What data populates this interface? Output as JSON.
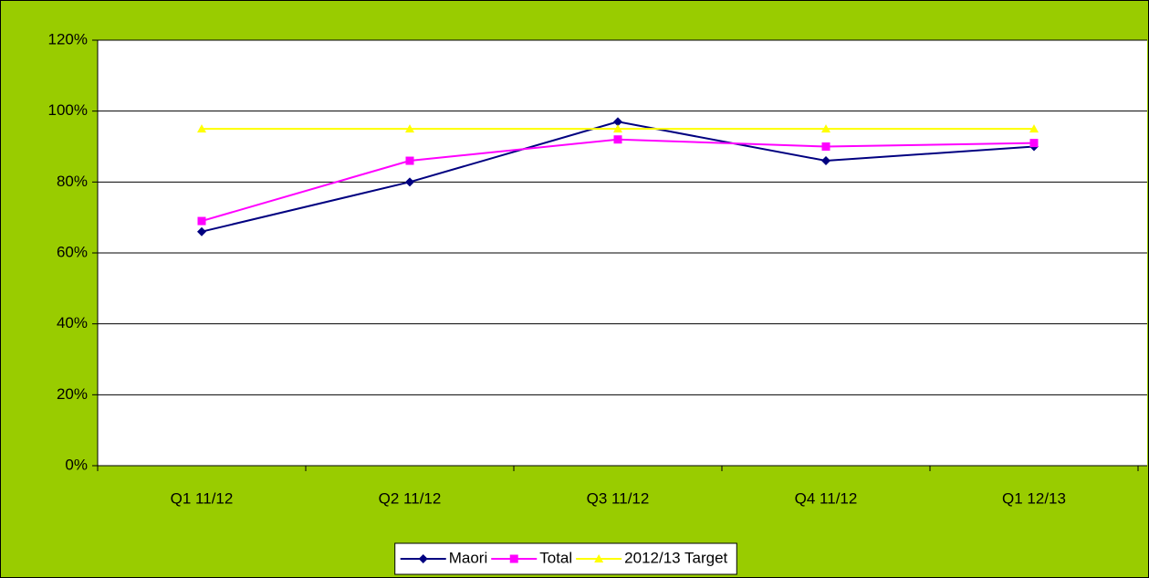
{
  "chart_data": {
    "type": "line",
    "categories": [
      "Q1 11/12",
      "Q2 11/12",
      "Q3 11/12",
      "Q4 11/12",
      "Q1 12/13"
    ],
    "series": [
      {
        "name": "Maori",
        "color": "#000080",
        "marker": "diamond",
        "values": [
          66,
          80,
          97,
          86,
          90
        ]
      },
      {
        "name": "Total",
        "color": "#ff00ff",
        "marker": "square",
        "values": [
          69,
          86,
          92,
          90,
          91
        ]
      },
      {
        "name": "2012/13 Target",
        "color": "#ffff00",
        "marker": "triangle",
        "values": [
          95,
          95,
          95,
          95,
          95
        ]
      }
    ],
    "ylim": [
      0,
      120
    ],
    "yticks": [
      {
        "value": 0,
        "label": "0%"
      },
      {
        "value": 20,
        "label": "20%"
      },
      {
        "value": 40,
        "label": "40%"
      },
      {
        "value": 60,
        "label": "60%"
      },
      {
        "value": 80,
        "label": "80%"
      },
      {
        "value": 100,
        "label": "100%"
      },
      {
        "value": 120,
        "label": "120%"
      }
    ],
    "grid": true,
    "legend": "bottom"
  }
}
